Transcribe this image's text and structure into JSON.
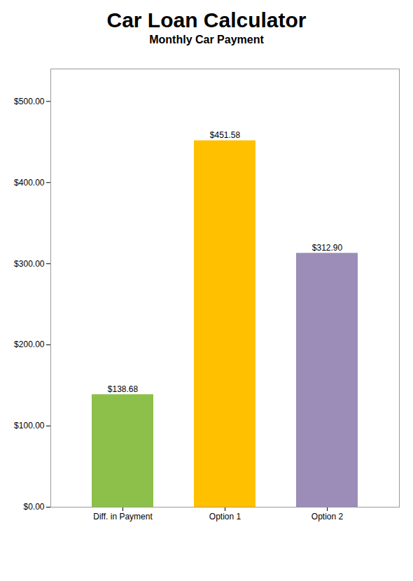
{
  "chart_data": {
    "type": "bar",
    "title": "Car Loan Calculator",
    "subtitle": "Monthly Car Payment",
    "categories": [
      "Diff. in Payment",
      "Option 1",
      "Option 2"
    ],
    "values": [
      138.68,
      451.58,
      312.9
    ],
    "value_labels": [
      "$138.68",
      "$451.58",
      "$312.90"
    ],
    "colors": [
      "#8DC04A",
      "#FFC000",
      "#9B8DB8"
    ],
    "data_labels": true,
    "ylim": [
      0,
      540
    ],
    "yticks": [
      {
        "value": 0,
        "label": "$0.00"
      },
      {
        "value": 100,
        "label": "$100.00"
      },
      {
        "value": 200,
        "label": "$200.00"
      },
      {
        "value": 300,
        "label": "$300.00"
      },
      {
        "value": 400,
        "label": "$400.00"
      },
      {
        "value": 500,
        "label": "$500.00"
      }
    ],
    "grid": false
  }
}
